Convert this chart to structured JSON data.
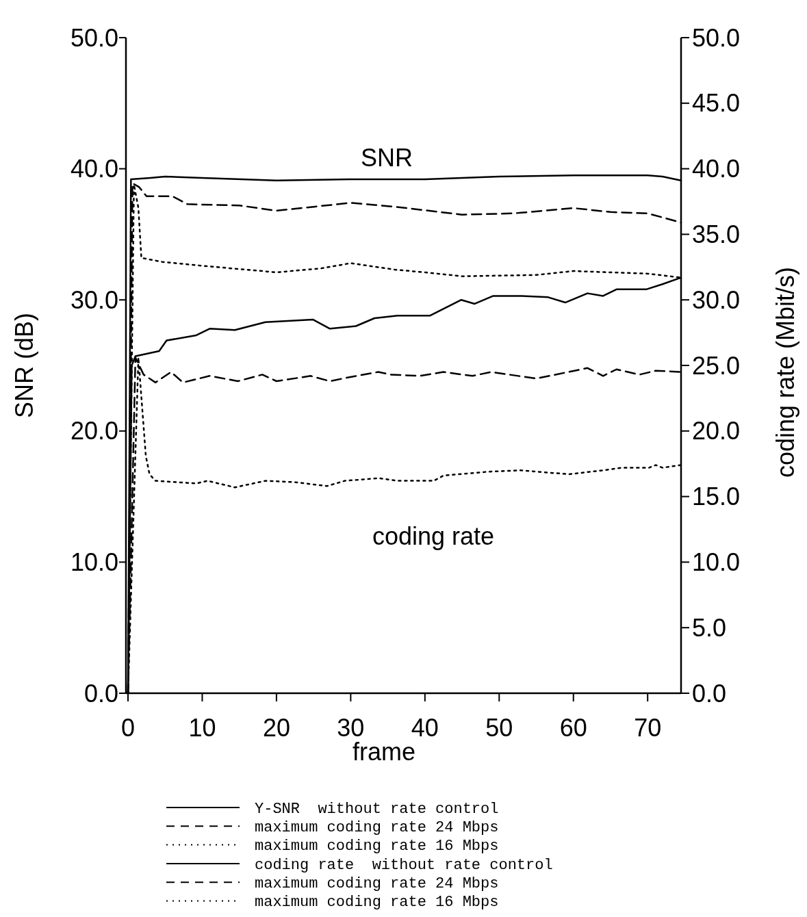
{
  "chart_data": {
    "type": "line",
    "xlabel": "frame",
    "ylabel": "SNR (dB)",
    "y2label": "coding rate (Mbit/s)",
    "xlim": [
      0,
      74.5
    ],
    "xticks": [
      0,
      10,
      20,
      30,
      40,
      50,
      60,
      70
    ],
    "ylim": [
      0,
      50
    ],
    "yticks": [
      {
        "value": 0,
        "label": "0.0"
      },
      {
        "value": 10,
        "label": "10.0"
      },
      {
        "value": 20,
        "label": "20.0"
      },
      {
        "value": 30,
        "label": "30.0"
      },
      {
        "value": 40,
        "label": "40.0"
      },
      {
        "value": 50,
        "label": "50.0"
      }
    ],
    "y2lim": [
      0,
      50
    ],
    "y2ticks": [
      {
        "value": 0,
        "label": "0.0"
      },
      {
        "value": 5,
        "label": "5.0"
      },
      {
        "value": 10,
        "label": "10.0"
      },
      {
        "value": 15,
        "label": "15.0"
      },
      {
        "value": 20,
        "label": "20.0"
      },
      {
        "value": 25,
        "label": "25.0"
      },
      {
        "value": 30,
        "label": "30.0"
      },
      {
        "value": 35,
        "label": "35.0"
      },
      {
        "value": 40,
        "label": "40.0"
      },
      {
        "value": 45,
        "label": "45.0"
      },
      {
        "value": 50,
        "label": "50.0"
      }
    ],
    "grid": false,
    "legend": "bottom",
    "annotations": [
      "SNR",
      "coding rate"
    ],
    "series": [
      {
        "name": "Y-SNR  without rate control",
        "color": "#000000",
        "line_style": "solid",
        "x": [
          0,
          0.4,
          3,
          5,
          10,
          20,
          30,
          40,
          50,
          60,
          70,
          72,
          74.5
        ],
        "values": [
          0,
          39.2,
          39.3,
          39.4,
          39.3,
          39.1,
          39.2,
          39.2,
          39.4,
          39.5,
          39.5,
          39.4,
          39.1
        ]
      },
      {
        "name": "maximum coding rate 24 Mbps",
        "color": "#000000",
        "line_style": "dashed",
        "x": [
          0,
          0.6,
          1.5,
          2.5,
          6,
          8,
          15,
          20,
          25,
          30,
          36,
          45,
          52,
          60,
          65,
          70,
          74.5
        ],
        "values": [
          0,
          38.9,
          38.6,
          37.9,
          37.9,
          37.3,
          37.2,
          36.8,
          37.1,
          37.4,
          37.1,
          36.5,
          36.6,
          37.0,
          36.7,
          36.6,
          35.9
        ]
      },
      {
        "name": "maximum coding rate 16 Mbps",
        "color": "#000000",
        "line_style": "dotted",
        "x": [
          0,
          0.8,
          1.4,
          1.8,
          4.6,
          10,
          20,
          26,
          30,
          36,
          40,
          45,
          55,
          60,
          70,
          74.5
        ],
        "values": [
          0,
          38.8,
          37,
          33.2,
          32.9,
          32.6,
          32.1,
          32.4,
          32.8,
          32.3,
          32.1,
          31.8,
          31.9,
          32.2,
          32.0,
          31.7
        ]
      },
      {
        "name": "coding rate  without rate control",
        "color": "#000000",
        "line_style": "solid",
        "x": [
          0,
          0.5,
          1,
          4.2,
          5.2,
          9.2,
          11,
          14.4,
          18.5,
          24.9,
          27.2,
          30.7,
          33.2,
          36.3,
          40.7,
          44.9,
          46.7,
          49.2,
          52.9,
          56.6,
          58.9,
          61.9,
          64,
          65.8,
          69.8,
          72,
          74.5
        ],
        "values": [
          0,
          25.0,
          25.7,
          26.1,
          26.9,
          27.3,
          27.8,
          27.7,
          28.3,
          28.5,
          27.8,
          28.0,
          28.6,
          28.8,
          28.8,
          30.0,
          29.7,
          30.3,
          30.3,
          30.2,
          29.8,
          30.5,
          30.3,
          30.8,
          30.8,
          31.2,
          31.7
        ]
      },
      {
        "name": "maximum coding rate 24 Mbps",
        "color": "#000000",
        "line_style": "dashed",
        "x": [
          0,
          1,
          2.1,
          3.7,
          5.8,
          7.4,
          11,
          14.8,
          18.1,
          20,
          24.6,
          27.2,
          29.8,
          33.7,
          35.4,
          39.3,
          42.5,
          46.4,
          48.9,
          55,
          61.9,
          64,
          65.8,
          68.9,
          71.1,
          74.5
        ],
        "values": [
          0,
          25.6,
          24.3,
          23.7,
          24.5,
          23.7,
          24.2,
          23.8,
          24.3,
          23.8,
          24.2,
          23.8,
          24.1,
          24.5,
          24.3,
          24.2,
          24.5,
          24.2,
          24.5,
          24.0,
          24.8,
          24.2,
          24.7,
          24.3,
          24.6,
          24.5
        ]
      },
      {
        "name": "maximum coding rate 16 Mbps",
        "color": "#000000",
        "line_style": "dotted",
        "x": [
          0,
          1.4,
          2.4,
          2.9,
          3.7,
          9.2,
          10.7,
          14.4,
          18.5,
          22.4,
          26.8,
          29.2,
          33.8,
          36.3,
          41.2,
          42.5,
          48.6,
          52.9,
          59.4,
          64,
          66.5,
          70.2,
          71.1,
          72,
          74.5
        ],
        "values": [
          0,
          25.6,
          18.1,
          16.7,
          16.2,
          16.0,
          16.2,
          15.7,
          16.2,
          16.1,
          15.8,
          16.2,
          16.4,
          16.2,
          16.2,
          16.6,
          16.9,
          17.0,
          16.7,
          17.0,
          17.2,
          17.2,
          17.4,
          17.2,
          17.4
        ]
      }
    ]
  }
}
